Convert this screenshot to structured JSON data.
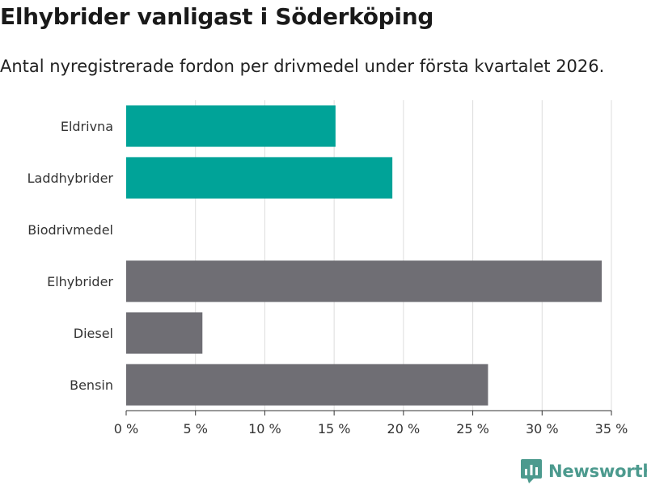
{
  "header": {
    "title": "Elhybrider vanligast i Söderköping",
    "subtitle": "Antal nyregistrerade fordon per drivmedel under första kvartalet 2026."
  },
  "brand": {
    "name": "Newsworthy",
    "color": "#4c9a8e"
  },
  "chart_data": {
    "type": "bar",
    "orientation": "horizontal",
    "categories": [
      "Eldrivna",
      "Laddhybrider",
      "Biodrivmedel",
      "Elhybrider",
      "Diesel",
      "Bensin"
    ],
    "values": [
      15.1,
      19.2,
      0,
      34.3,
      5.5,
      26.1
    ],
    "colors": [
      "#00a398",
      "#00a398",
      "#00a398",
      "#6f6e74",
      "#6f6e74",
      "#6f6e74"
    ],
    "xlim": [
      0,
      35
    ],
    "xticks": [
      0,
      5,
      10,
      15,
      20,
      25,
      30,
      35
    ],
    "xtick_labels": [
      "0 %",
      "5 %",
      "10 %",
      "15 %",
      "20 %",
      "25 %",
      "30 %",
      "35 %"
    ],
    "grid": true
  }
}
